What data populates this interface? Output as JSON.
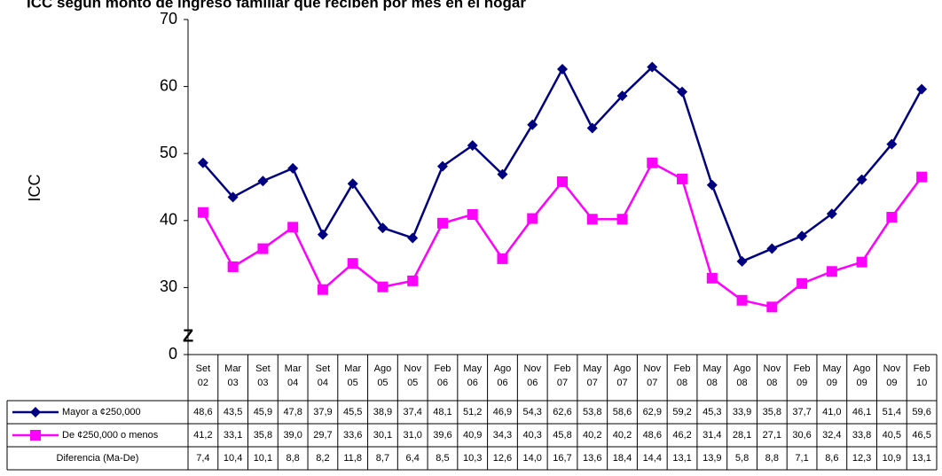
{
  "chart_data": {
    "type": "line",
    "title": "ICC según monto de ingreso familiar que reciben por mes en el hogar",
    "y_label": "ICC",
    "categories": [
      [
        "Set",
        "02"
      ],
      [
        "Mar",
        "03"
      ],
      [
        "Set",
        "03"
      ],
      [
        "Mar",
        "04"
      ],
      [
        "Set",
        "04"
      ],
      [
        "Mar",
        "05"
      ],
      [
        "Ago",
        "05"
      ],
      [
        "Nov",
        "05"
      ],
      [
        "Feb",
        "06"
      ],
      [
        "May",
        "06"
      ],
      [
        "Ago",
        "06"
      ],
      [
        "Nov",
        "06"
      ],
      [
        "Feb",
        "07"
      ],
      [
        "May",
        "07"
      ],
      [
        "Ago",
        "07"
      ],
      [
        "Nov",
        "07"
      ],
      [
        "Feb",
        "08"
      ],
      [
        "May",
        "08"
      ],
      [
        "Ago",
        "08"
      ],
      [
        "Nov",
        "08"
      ],
      [
        "Feb",
        "09"
      ],
      [
        "May",
        "09"
      ],
      [
        "Ago",
        "09"
      ],
      [
        "Nov",
        "09"
      ],
      [
        "Feb",
        "10"
      ]
    ],
    "series": [
      {
        "name": "Mayor a ¢250,000",
        "color": "#000080",
        "marker": "diamond",
        "values": [
          48.6,
          43.5,
          45.9,
          47.8,
          37.9,
          45.5,
          38.9,
          37.4,
          48.1,
          51.2,
          46.9,
          54.3,
          62.6,
          53.8,
          58.6,
          62.9,
          59.2,
          45.3,
          33.9,
          35.8,
          37.7,
          41.0,
          46.1,
          51.4,
          59.6
        ],
        "value_labels": [
          "48,6",
          "43,5",
          "45,9",
          "47,8",
          "37,9",
          "45,5",
          "38,9",
          "37,4",
          "48,1",
          "51,2",
          "46,9",
          "54,3",
          "62,6",
          "53,8",
          "58,6",
          "62,9",
          "59,2",
          "45,3",
          "33,9",
          "35,8",
          "37,7",
          "41,0",
          "46,1",
          "51,4",
          "59,6"
        ]
      },
      {
        "name": "De ¢250,000 o menos",
        "color": "#ff00ff",
        "marker": "square",
        "values": [
          41.2,
          33.1,
          35.8,
          39.0,
          29.7,
          33.6,
          30.1,
          31.0,
          39.6,
          40.9,
          34.3,
          40.3,
          45.8,
          40.2,
          40.2,
          48.6,
          46.2,
          31.4,
          28.1,
          27.1,
          30.6,
          32.4,
          33.8,
          40.5,
          46.5
        ],
        "value_labels": [
          "41,2",
          "33,1",
          "35,8",
          "39,0",
          "29,7",
          "33,6",
          "30,1",
          "31,0",
          "39,6",
          "40,9",
          "34,3",
          "40,3",
          "45,8",
          "40,2",
          "40,2",
          "48,6",
          "46,2",
          "31,4",
          "28,1",
          "27,1",
          "30,6",
          "32,4",
          "33,8",
          "40,5",
          "46,5"
        ]
      }
    ],
    "difference": {
      "name": "Diferencia (Ma-De)",
      "values": [
        7.4,
        10.4,
        10.1,
        8.8,
        8.2,
        11.8,
        8.7,
        6.4,
        8.5,
        10.3,
        12.6,
        14.0,
        16.7,
        13.6,
        18.4,
        14.4,
        13.1,
        13.9,
        5.8,
        8.8,
        7.1,
        8.6,
        12.3,
        10.9,
        13.1
      ],
      "value_labels": [
        "7,4",
        "10,4",
        "10,1",
        "8,8",
        "8,2",
        "11,8",
        "8,7",
        "6,4",
        "8,5",
        "10,3",
        "12,6",
        "14,0",
        "16,7",
        "13,6",
        "18,4",
        "14,4",
        "13,1",
        "13,9",
        "5,8",
        "8,8",
        "7,1",
        "8,6",
        "12,3",
        "10,9",
        "13,1"
      ]
    },
    "ylim": [
      0,
      70
    ],
    "axis_break": {
      "range": [
        0,
        20
      ],
      "label": "Z"
    },
    "yticks": [
      0,
      30,
      40,
      50,
      60,
      70
    ]
  }
}
